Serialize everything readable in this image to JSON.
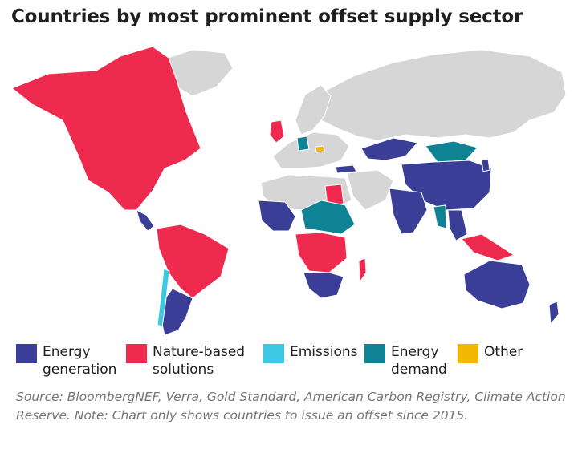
{
  "title": "Countries by most prominent offset supply sector",
  "colors": {
    "energy_generation": "#3a3e96",
    "nature_based": "#ee2a4e",
    "emissions": "#3fc8e4",
    "energy_demand": "#0f8294",
    "other": "#f2b705",
    "no_data": "#d6d6d6"
  },
  "legend": [
    {
      "key": "energy_generation",
      "label": "Energy\ngeneration"
    },
    {
      "key": "nature_based",
      "label": "Nature-based\nsolutions"
    },
    {
      "key": "emissions",
      "label": "Emissions"
    },
    {
      "key": "energy_demand",
      "label": "Energy\ndemand"
    },
    {
      "key": "other",
      "label": "Other"
    }
  ],
  "source": "Source: BloombergNEF, Verra, Gold Standard, American Carbon Registry, Climate Action Reserve. Note: Chart only shows countries to issue an offset since 2015."
}
